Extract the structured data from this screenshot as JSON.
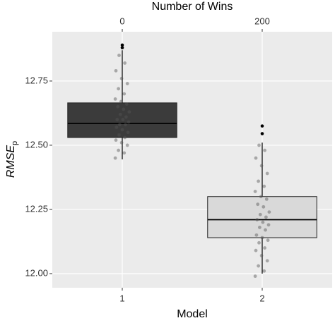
{
  "chart_data": {
    "type": "box",
    "top_axis_label": "Number of Wins",
    "top_categories": [
      "0",
      "200"
    ],
    "xlabel": "Model",
    "ylabel": "RMSE",
    "ylabel_sub": "p",
    "categories": [
      "1",
      "2"
    ],
    "ylim": [
      11.945,
      12.942
    ],
    "yticks": [
      {
        "value": 12.0,
        "label": "12.00"
      },
      {
        "value": 12.25,
        "label": "12.25"
      },
      {
        "value": 12.5,
        "label": "12.50"
      },
      {
        "value": 12.75,
        "label": "12.75"
      }
    ],
    "grid": true,
    "boxes": [
      {
        "color": "#3b3b3b",
        "q1": 12.53,
        "median": 12.585,
        "q3": 12.665,
        "whisker_low": 12.445,
        "whisker_high": 12.87,
        "outliers": [
          12.88,
          12.89
        ],
        "points": [
          12.45,
          12.47,
          12.48,
          12.5,
          12.51,
          12.52,
          12.53,
          12.54,
          12.55,
          12.56,
          12.57,
          12.58,
          12.58,
          12.59,
          12.6,
          12.6,
          12.61,
          12.62,
          12.63,
          12.64,
          12.65,
          12.66,
          12.67,
          12.68,
          12.7,
          12.72,
          12.74,
          12.76,
          12.79,
          12.82,
          12.85
        ]
      },
      {
        "color": "#d9d9d9",
        "q1": 12.14,
        "median": 12.21,
        "q3": 12.3,
        "whisker_low": 12.0,
        "whisker_high": 12.51,
        "outliers": [
          12.545,
          12.575
        ],
        "points": [
          11.99,
          12.01,
          12.03,
          12.05,
          12.07,
          12.09,
          12.1,
          12.12,
          12.13,
          12.14,
          12.15,
          12.17,
          12.18,
          12.19,
          12.2,
          12.21,
          12.22,
          12.23,
          12.24,
          12.26,
          12.27,
          12.29,
          12.3,
          12.32,
          12.34,
          12.36,
          12.39,
          12.42,
          12.45,
          12.48,
          12.5
        ]
      }
    ]
  }
}
